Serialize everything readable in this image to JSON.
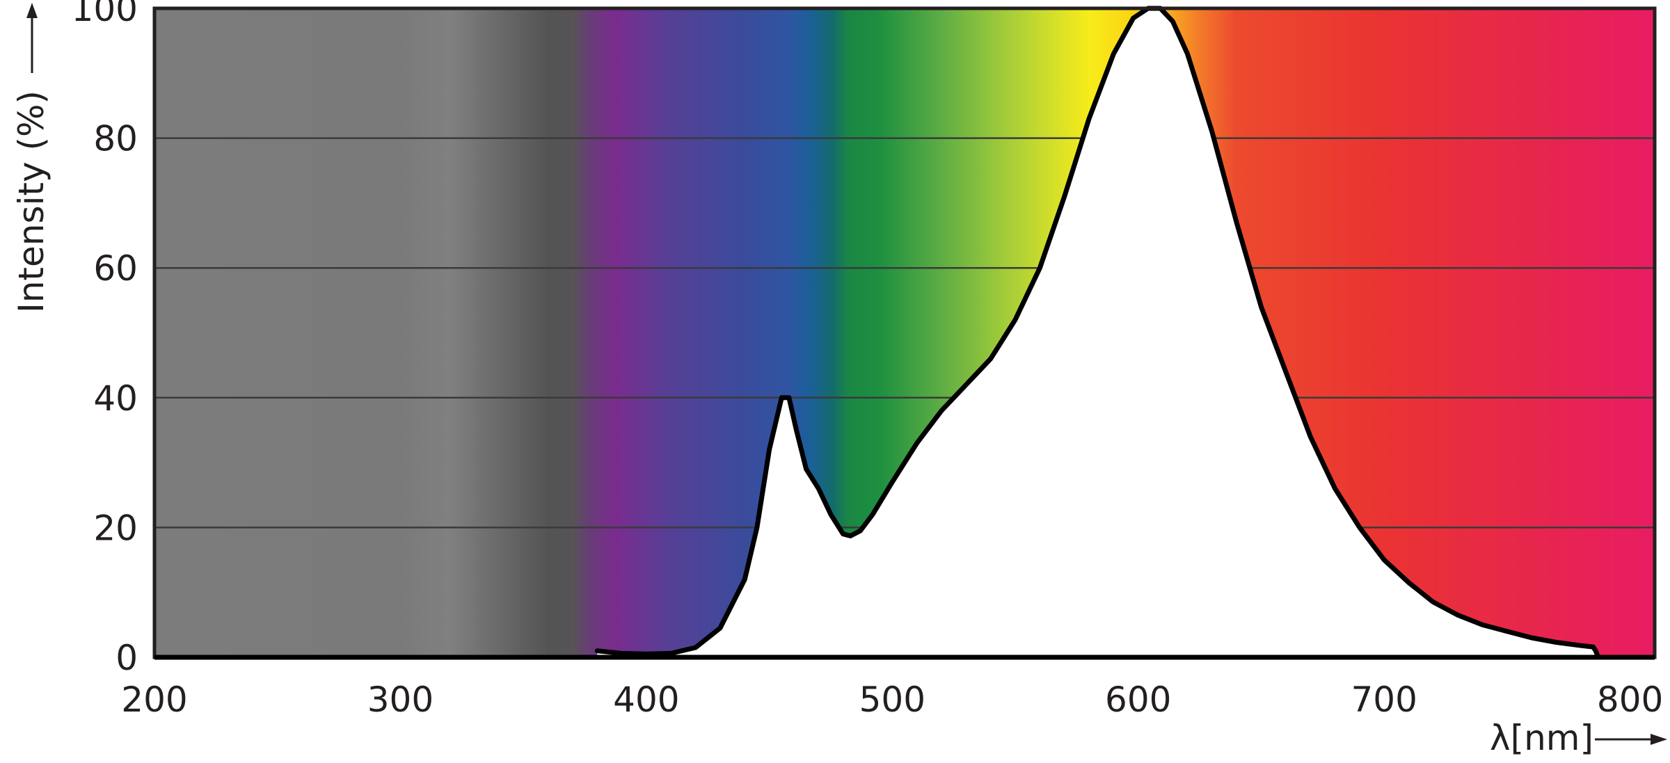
{
  "chart_data": {
    "type": "area",
    "title": "",
    "xlabel": "λ[nm]",
    "ylabel": "Intensity (%)",
    "xlim": [
      200,
      810
    ],
    "ylim": [
      0,
      100
    ],
    "x_ticks": [
      200,
      300,
      400,
      500,
      600,
      700,
      800
    ],
    "y_ticks": [
      0,
      20,
      40,
      60,
      80,
      100
    ],
    "grid": "horizontal",
    "legend": "none",
    "background": "visible-spectrum gradient (grey below 380 nm, violet → blue → green → yellow → orange → red)",
    "series": [
      {
        "fill": "#ffffff",
        "stroke": "#000000",
        "x": [
          380,
          390,
          400,
          410,
          420,
          430,
          440,
          445,
          450,
          455,
          458,
          461,
          465,
          470,
          475,
          480,
          483,
          487,
          492,
          500,
          510,
          520,
          530,
          540,
          550,
          560,
          570,
          580,
          590,
          598,
          604,
          609,
          614,
          620,
          630,
          640,
          650,
          660,
          670,
          680,
          690,
          700,
          710,
          720,
          730,
          740,
          750,
          760,
          770,
          780,
          785,
          786,
          787
        ],
        "y": [
          1,
          0.6,
          0.5,
          0.6,
          1.5,
          4.5,
          12,
          20,
          32,
          40,
          40,
          35,
          29,
          26,
          22,
          19,
          18.7,
          19.5,
          22,
          27,
          33,
          38,
          42,
          46,
          52,
          60,
          71,
          83,
          93,
          98.5,
          100,
          100,
          98,
          93,
          81,
          67,
          54,
          44,
          34,
          26,
          20,
          15,
          11.5,
          8.5,
          6.5,
          5,
          4,
          3,
          2.3,
          1.8,
          1.6,
          1,
          0
        ]
      }
    ]
  },
  "colors": {
    "axis_frame": "#231f20",
    "gridline": "#3a3a3a",
    "curve": "#000000",
    "under_curve": "#ffffff",
    "spectrum": [
      {
        "nm": 200,
        "color": "#7c7c7c"
      },
      {
        "nm": 300,
        "color": "#7a7a7a"
      },
      {
        "nm": 320,
        "color": "#808080"
      },
      {
        "nm": 360,
        "color": "#545454"
      },
      {
        "nm": 370,
        "color": "#575357"
      },
      {
        "nm": 378,
        "color": "#6a3a7a"
      },
      {
        "nm": 387,
        "color": "#7a2c8e"
      },
      {
        "nm": 410,
        "color": "#554096"
      },
      {
        "nm": 440,
        "color": "#3a4b9c"
      },
      {
        "nm": 458,
        "color": "#2f55a2"
      },
      {
        "nm": 466,
        "color": "#1b5f9a"
      },
      {
        "nm": 476,
        "color": "#146b6a"
      },
      {
        "nm": 482,
        "color": "#1a8744"
      },
      {
        "nm": 495,
        "color": "#1e9040"
      },
      {
        "nm": 520,
        "color": "#5ead44"
      },
      {
        "nm": 545,
        "color": "#a0cb3a"
      },
      {
        "nm": 565,
        "color": "#d3df2a"
      },
      {
        "nm": 580,
        "color": "#f7ec1a"
      },
      {
        "nm": 600,
        "color": "#fcd015"
      },
      {
        "nm": 612,
        "color": "#f8b01e"
      },
      {
        "nm": 625,
        "color": "#f37a2a"
      },
      {
        "nm": 640,
        "color": "#ec4a2e"
      },
      {
        "nm": 700,
        "color": "#ea3332"
      },
      {
        "nm": 760,
        "color": "#e7264c"
      },
      {
        "nm": 810,
        "color": "#e81c63"
      }
    ]
  }
}
